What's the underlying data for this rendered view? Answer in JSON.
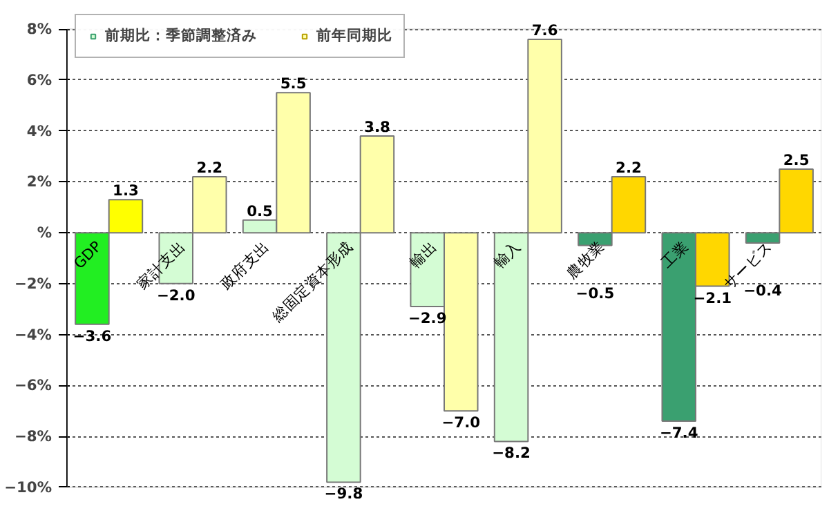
{
  "chart_data": {
    "type": "bar",
    "categories": [
      "GDP",
      "家計支出",
      "政府支出",
      "総固定資本形成",
      "輸出",
      "輸入",
      "農牧業",
      "工業",
      "サービス"
    ],
    "series": [
      {
        "name": "前期比：季節調整済み",
        "color": "#d4fcd4",
        "colors": [
          "#22ee22",
          "#d4fcd4",
          "#d4fcd4",
          "#d4fcd4",
          "#d4fcd4",
          "#d4fcd4",
          "#3aa070",
          "#3aa070",
          "#3aa070"
        ],
        "values": [
          -3.6,
          -2.0,
          0.5,
          -9.8,
          -2.9,
          -8.2,
          -0.5,
          -7.4,
          -0.4
        ],
        "value_labels": [
          "−3.6",
          "−2.0",
          "0.5",
          "−9.8",
          "−2.9",
          "−8.2",
          "−0.5",
          "−7.4",
          "−0.4"
        ]
      },
      {
        "name": "前年同期比",
        "color": "#ffffaa",
        "colors": [
          "#ffff00",
          "#ffffaa",
          "#ffffaa",
          "#ffffaa",
          "#ffffaa",
          "#ffffaa",
          "#ffd700",
          "#ffd700",
          "#ffd700"
        ],
        "values": [
          1.3,
          2.2,
          5.5,
          3.8,
          -7.0,
          7.6,
          2.2,
          -2.1,
          2.5
        ],
        "value_labels": [
          "1.3",
          "2.2",
          "5.5",
          "3.8",
          "−7.0",
          "7.6",
          "2.2",
          "−2.1",
          "2.5"
        ]
      }
    ],
    "ylim": [
      -10,
      8
    ],
    "yticks": [
      {
        "value": -10,
        "label": "−10%"
      },
      {
        "value": -8,
        "label": "−8%"
      },
      {
        "value": -6,
        "label": "−6%"
      },
      {
        "value": -4,
        "label": "−4%"
      },
      {
        "value": -2,
        "label": "−2%"
      },
      {
        "value": 0,
        "label": "%"
      },
      {
        "value": 2,
        "label": "2%"
      },
      {
        "value": 4,
        "label": "4%"
      },
      {
        "value": 6,
        "label": "6%"
      },
      {
        "value": 8,
        "label": "8%"
      }
    ],
    "grid": "y",
    "legend": "top left"
  }
}
